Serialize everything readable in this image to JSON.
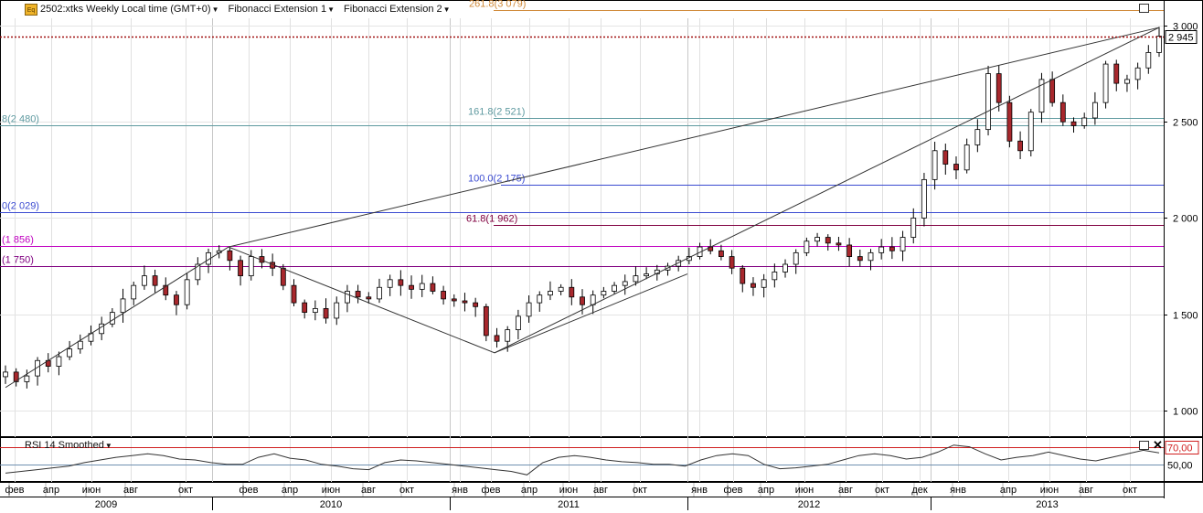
{
  "toolbar": {
    "app_icon": "Eq",
    "symbol_label": "2502:xtks Weekly Local time (GMT+0)",
    "fib1_label": "Fibonacci Extension 1",
    "fib2_label": "Fibonacci Extension 2"
  },
  "rsi_label": "RSI 14 Smoothed",
  "chart_data": {
    "type": "candlestick",
    "price_axis": {
      "min": 950,
      "max": 3030,
      "ticks": [
        "1 000",
        "1 500",
        "2 000",
        "2 500",
        "3 000"
      ],
      "tick_values": [
        1000,
        1500,
        2000,
        2500,
        3000
      ]
    },
    "last_price": {
      "value": 2945,
      "label": "2 945"
    },
    "fib_levels": [
      {
        "label": "261.8(3 079)",
        "value": 3079,
        "color": "#d08a3a"
      },
      {
        "label": "161.8(2 521)",
        "value": 2521,
        "color": "#5f9aa0"
      },
      {
        "label": "8(2 480)",
        "value": 2480,
        "color": "#5f9aa0"
      },
      {
        "label": "100.0(2 175)",
        "value": 2175,
        "color": "#3b4bd1"
      },
      {
        "label": "0(2 029)",
        "value": 2029,
        "color": "#3b4bd1"
      },
      {
        "label": "61.8(1 962)",
        "value": 1962,
        "color": "#800040"
      },
      {
        "label": "(1 856)",
        "value": 1856,
        "color": "#c000c0"
      },
      {
        "label": "(1 750)",
        "value": 1750,
        "color": "#800080"
      }
    ],
    "month_labels": [
      "фев",
      "апр",
      "июн",
      "авг",
      "окт",
      "фев",
      "апр",
      "июн",
      "авг",
      "окт",
      "янв",
      "фев",
      "апр",
      "июн",
      "авг",
      "окт",
      "янв",
      "фев",
      "апр",
      "июн",
      "авг",
      "окт",
      "дек",
      "янв",
      "апр",
      "июн",
      "авг",
      "окт"
    ],
    "year_labels": [
      "2009",
      "2010",
      "2011",
      "2012",
      "2013"
    ],
    "rsi": {
      "levels": [
        "70,00",
        "50,00"
      ],
      "level_values": [
        70,
        50
      ],
      "min": 30,
      "max": 80
    },
    "price_path": [
      1200,
      1150,
      1180,
      1260,
      1230,
      1280,
      1320,
      1360,
      1400,
      1450,
      1510,
      1580,
      1650,
      1700,
      1650,
      1600,
      1550,
      1680,
      1760,
      1820,
      1830,
      1780,
      1700,
      1800,
      1770,
      1740,
      1650,
      1560,
      1510,
      1530,
      1480,
      1560,
      1620,
      1590,
      1580,
      1640,
      1680,
      1650,
      1630,
      1660,
      1620,
      1580,
      1570,
      1560,
      1540,
      1390,
      1360,
      1420,
      1490,
      1560,
      1600,
      1620,
      1640,
      1590,
      1550,
      1600,
      1620,
      1650,
      1670,
      1700,
      1710,
      1730,
      1750,
      1780,
      1800,
      1850,
      1830,
      1800,
      1740,
      1660,
      1640,
      1680,
      1720,
      1760,
      1820,
      1880,
      1900,
      1870,
      1860,
      1800,
      1780,
      1820,
      1850,
      1830,
      1900,
      2000,
      2200,
      2350,
      2280,
      2250,
      2380,
      2460,
      2750,
      2600,
      2400,
      2350,
      2550,
      2720,
      2600,
      2500,
      2480,
      2520,
      2600,
      2800,
      2700,
      2720,
      2780,
      2860,
      2945
    ],
    "rsi_path": [
      40,
      42,
      44,
      46,
      48,
      52,
      55,
      58,
      60,
      62,
      60,
      56,
      55,
      52,
      50,
      50,
      58,
      62,
      57,
      55,
      50,
      48,
      45,
      44,
      52,
      55,
      54,
      52,
      50,
      48,
      46,
      44,
      42,
      38,
      52,
      58,
      60,
      58,
      55,
      53,
      52,
      50,
      50,
      48,
      55,
      60,
      62,
      60,
      50,
      45,
      46,
      48,
      50,
      55,
      60,
      62,
      60,
      56,
      58,
      64,
      72,
      70,
      62,
      55,
      58,
      60,
      64,
      60,
      56,
      54,
      58,
      62,
      66,
      63
    ]
  }
}
